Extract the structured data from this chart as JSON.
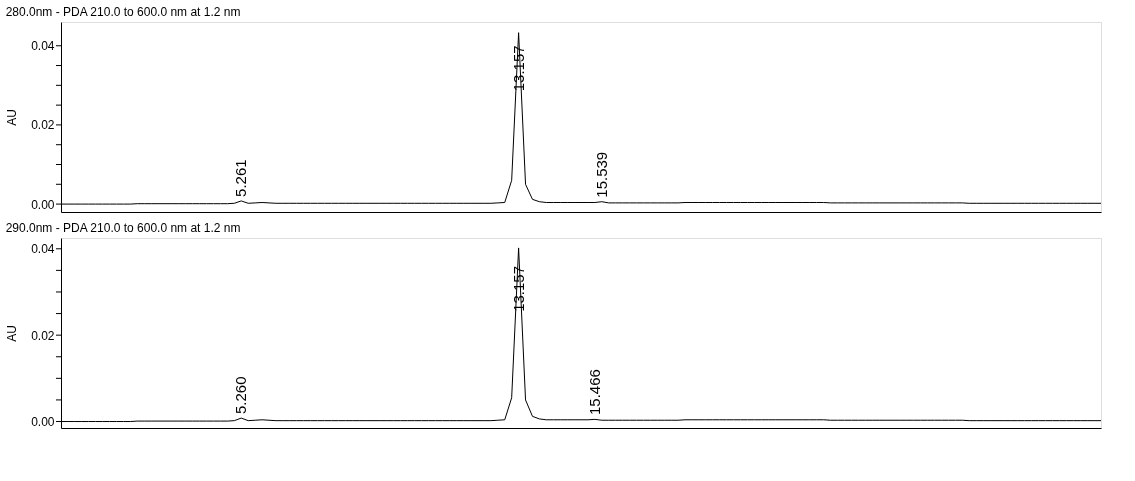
{
  "chart_data": [
    {
      "type": "line",
      "title": "280.0nm - PDA 210.0 to 600.0 nm at 1.2 nm",
      "ylabel": "AU",
      "ylim": [
        -0.002,
        0.046
      ],
      "categories": [
        null,
        null,
        null,
        null,
        null,
        null,
        null,
        null,
        null,
        null,
        null,
        null,
        null,
        null,
        null,
        null,
        null,
        null,
        null,
        null,
        null,
        null,
        null,
        null,
        null,
        null,
        null,
        null,
        null,
        null,
        null,
        null,
        null,
        null,
        null,
        null,
        null,
        null,
        null,
        null,
        null,
        null,
        null,
        null,
        null,
        null,
        null,
        null,
        null,
        null,
        null,
        null,
        null,
        null,
        null,
        null,
        null,
        null,
        null,
        null,
        null,
        null,
        null,
        null,
        null,
        null,
        null,
        null,
        null,
        null,
        null,
        null,
        null,
        null,
        null,
        null,
        null,
        null,
        null,
        null,
        null,
        null,
        null,
        null,
        null,
        null,
        null,
        null,
        null,
        null,
        null,
        null,
        null,
        null,
        null,
        null,
        null,
        null,
        null,
        null,
        null,
        null,
        null,
        null,
        null,
        null,
        null,
        null,
        null,
        null,
        null,
        null,
        null,
        null,
        null,
        null,
        null,
        null,
        null,
        null,
        null,
        null,
        null,
        null,
        null,
        null,
        null,
        null,
        null,
        null,
        null,
        null,
        null,
        null,
        null,
        null,
        null,
        null,
        null,
        null,
        null,
        null,
        null,
        null,
        null,
        null,
        null,
        null,
        null,
        null,
        null
      ],
      "yticks": [
        {
          "value": 0,
          "label": "0.00"
        },
        {
          "value": 0.005,
          "label": null
        },
        {
          "value": 0.01,
          "label": null
        },
        {
          "value": 0.015,
          "label": null
        },
        {
          "value": 0.02,
          "label": "0.02"
        },
        {
          "value": 0.025,
          "label": null
        },
        {
          "value": 0.03,
          "label": null
        },
        {
          "value": 0.035,
          "label": null
        },
        {
          "value": 0.04,
          "label": "0.04"
        }
      ],
      "tick_labels": "y",
      "series": [
        {
          "color": "#000000",
          "values": [
            0,
            0,
            0,
            0,
            0,
            0,
            0,
            0,
            0,
            0,
            0,
            0.0001,
            0.0001,
            0.0001,
            0.0001,
            0.0001,
            0.0001,
            0.0001,
            0.0001,
            0.0001,
            0.0001,
            0.0001,
            0.0001,
            0.0001,
            0.0001,
            0.0002,
            0.0008,
            0.0002,
            0.0003,
            0.0004,
            0.0003,
            0.0002,
            0.0002,
            0.0002,
            0.0002,
            0.0002,
            0.0002,
            0.0002,
            0.0002,
            0.0002,
            0.0002,
            0.0002,
            0.0002,
            0.0002,
            0.0002,
            0.0002,
            0.0002,
            0.0002,
            0.0002,
            0.0002,
            0.0002,
            0.0002,
            0.0002,
            0.0002,
            0.0002,
            0.0002,
            0.0002,
            0.0002,
            0.0002,
            0.0002,
            0.0002,
            0.0002,
            0.0002,
            0.0003,
            0.0004,
            0.006,
            0.0433,
            0.005,
            0.0012,
            0.0006,
            0.0004,
            0.0004,
            0.0004,
            0.0004,
            0.0004,
            0.0004,
            0.0004,
            0.0004,
            0.0006,
            0.0003,
            0.0003,
            0.0003,
            0.0003,
            0.0003,
            0.0003,
            0.0003,
            0.0003,
            0.0003,
            0.0003,
            0.0003,
            0.0004,
            0.0004,
            0.0004,
            0.0004,
            0.0004,
            0.0004,
            0.0004,
            0.0004,
            0.0004,
            0.0004,
            0.0004,
            0.0004,
            0.0004,
            0.0004,
            0.0004,
            0.0004,
            0.0004,
            0.0004,
            0.0004,
            0.0004,
            0.0004,
            0.0003,
            0.0003,
            0.0003,
            0.0003,
            0.0003,
            0.0003,
            0.0003,
            0.0003,
            0.0003,
            0.0003,
            0.0003,
            0.0003,
            0.0003,
            0.0003,
            0.0003,
            0.0003,
            0.0003,
            0.0003,
            0.0003,
            0.0003,
            0.0002,
            0.0002,
            0.0002,
            0.0002,
            0.0002,
            0.0002,
            0.0002,
            0.0002,
            0.0002,
            0.0002,
            0.0002,
            0.0002,
            0.0002,
            0.0002,
            0.0002,
            0.0002,
            0.0002,
            0.0002,
            0.0002,
            0.0002
          ]
        }
      ],
      "annotations": [
        "5.261",
        {
          "text": "13.157",
          "y": 0.0285
        },
        "15.539"
      ]
    },
    {
      "type": "line",
      "title": "290.0nm - PDA 210.0 to 600.0 nm at 1.2 nm",
      "ylabel": "AU",
      "ylim": [
        -0.0015,
        0.0425
      ],
      "categories": [
        null,
        null,
        null,
        null,
        null,
        null,
        null,
        null,
        null,
        null,
        null,
        null,
        null,
        null,
        null,
        null,
        null,
        null,
        null,
        null,
        null,
        null,
        null,
        null,
        null,
        null,
        null,
        null,
        null,
        null,
        null,
        null,
        null,
        null,
        null,
        null,
        null,
        null,
        null,
        null,
        null,
        null,
        null,
        null,
        null,
        null,
        null,
        null,
        null,
        null,
        null,
        null,
        null,
        null,
        null,
        null,
        null,
        null,
        null,
        null,
        null,
        null,
        null,
        null,
        null,
        null,
        null,
        null,
        null,
        null,
        null,
        null,
        null,
        null,
        null,
        null,
        null,
        null,
        null,
        null,
        null,
        null,
        null,
        null,
        null,
        null,
        null,
        null,
        null,
        null,
        null,
        null,
        null,
        null,
        null,
        null,
        null,
        null,
        null,
        null,
        null,
        null,
        null,
        null,
        null,
        null,
        null,
        null,
        null,
        null,
        null,
        null,
        null,
        null,
        null,
        null,
        null,
        null,
        null,
        null,
        null,
        null,
        null,
        null,
        null,
        null,
        null,
        null,
        null,
        null,
        null,
        null,
        null,
        null,
        null,
        null,
        null,
        null,
        null,
        null,
        null,
        null,
        null,
        null,
        null,
        null,
        null,
        null,
        null,
        null,
        null
      ],
      "yticks": [
        {
          "value": 0,
          "label": "0.00"
        },
        {
          "value": 0.005,
          "label": null
        },
        {
          "value": 0.01,
          "label": null
        },
        {
          "value": 0.015,
          "label": null
        },
        {
          "value": 0.02,
          "label": "0.02"
        },
        {
          "value": 0.025,
          "label": null
        },
        {
          "value": 0.03,
          "label": null
        },
        {
          "value": 0.035,
          "label": null
        },
        {
          "value": 0.04,
          "label": "0.04"
        }
      ],
      "tick_labels": "y",
      "series": [
        {
          "color": "#000000",
          "values": [
            0,
            0,
            0,
            0,
            0,
            0,
            0,
            0,
            0,
            0,
            0,
            0.0001,
            0.0001,
            0.0001,
            0.0001,
            0.0001,
            0.0001,
            0.0001,
            0.0001,
            0.0001,
            0.0001,
            0.0001,
            0.0001,
            0.0001,
            0.0001,
            0.0002,
            0.0008,
            0.0002,
            0.0003,
            0.0004,
            0.0003,
            0.0002,
            0.0002,
            0.0002,
            0.0002,
            0.0002,
            0.0002,
            0.0002,
            0.0002,
            0.0002,
            0.0002,
            0.0002,
            0.0002,
            0.0002,
            0.0002,
            0.0002,
            0.0002,
            0.0002,
            0.0002,
            0.0002,
            0.0002,
            0.0002,
            0.0002,
            0.0002,
            0.0002,
            0.0002,
            0.0002,
            0.0002,
            0.0002,
            0.0002,
            0.0002,
            0.0002,
            0.0002,
            0.0003,
            0.0004,
            0.0055,
            0.0402,
            0.005,
            0.0012,
            0.0006,
            0.0004,
            0.0004,
            0.0004,
            0.0004,
            0.0004,
            0.0004,
            0.0004,
            0.0005,
            0.0003,
            0.0003,
            0.0003,
            0.0003,
            0.0003,
            0.0003,
            0.0003,
            0.0003,
            0.0003,
            0.0003,
            0.0003,
            0.0003,
            0.0004,
            0.0004,
            0.0004,
            0.0004,
            0.0004,
            0.0004,
            0.0004,
            0.0004,
            0.0004,
            0.0004,
            0.0004,
            0.0004,
            0.0004,
            0.0004,
            0.0004,
            0.0004,
            0.0004,
            0.0004,
            0.0004,
            0.0004,
            0.0004,
            0.0003,
            0.0003,
            0.0003,
            0.0003,
            0.0003,
            0.0003,
            0.0003,
            0.0003,
            0.0003,
            0.0003,
            0.0003,
            0.0003,
            0.0003,
            0.0003,
            0.0003,
            0.0003,
            0.0003,
            0.0003,
            0.0003,
            0.0003,
            0.0002,
            0.0002,
            0.0002,
            0.0002,
            0.0002,
            0.0002,
            0.0002,
            0.0002,
            0.0002,
            0.0002,
            0.0002,
            0.0002,
            0.0002,
            0.0002,
            0.0002,
            0.0002,
            0.0002,
            0.0002,
            0.0002,
            0.0002
          ]
        }
      ],
      "annotations": [
        "5.260",
        {
          "text": "13.157",
          "y": 0.0254
        },
        {
          "text": "15.466",
          "y": 0.0015
        }
      ]
    }
  ]
}
